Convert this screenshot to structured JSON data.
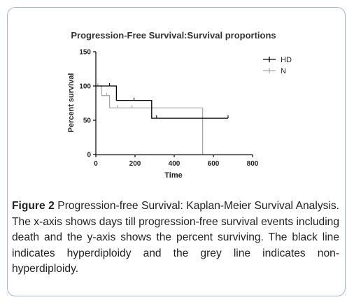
{
  "chart_data": {
    "type": "line",
    "title": "Progression-Free Survival:Survival proportions",
    "xlabel": "Time",
    "ylabel": "Percent survival",
    "xlim": [
      0,
      800
    ],
    "ylim": [
      0,
      150
    ],
    "x_ticks": [
      "0",
      "200",
      "400",
      "600",
      "800"
    ],
    "y_ticks": [
      "0",
      "50",
      "100",
      "150"
    ],
    "grid": false,
    "legend_position": "top-right",
    "series": [
      {
        "name": "HD",
        "color": "#000000",
        "steps": [
          [
            0,
            100
          ],
          [
            105,
            100
          ],
          [
            105,
            79
          ],
          [
            285,
            79
          ],
          [
            285,
            53
          ],
          [
            675,
            53
          ]
        ],
        "censor_x": [
          70,
          195,
          310,
          675
        ]
      },
      {
        "name": "N",
        "color": "#a8a8a8",
        "steps": [
          [
            0,
            100
          ],
          [
            30,
            100
          ],
          [
            30,
            86
          ],
          [
            70,
            86
          ],
          [
            70,
            68
          ],
          [
            545,
            68
          ],
          [
            545,
            0
          ]
        ],
        "censor_x": [
          10,
          55,
          110,
          185
        ]
      }
    ]
  },
  "caption": {
    "label": "Figure 2",
    "text": " Progression-free Survival: Kaplan-Meier Survival Analysis. The x-axis shows days till progression-free survival events including death and the y-axis shows the percent surviving. The black line indicates hyperdiploidy and the grey line indicates non-hyperdiploidy."
  }
}
